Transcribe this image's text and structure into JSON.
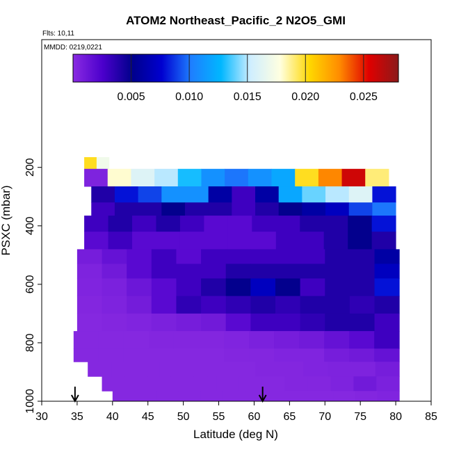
{
  "title": "ATOM2 Northeast_Pacific_2 N2O5_GMI",
  "flights_label": "Flts: 10,11",
  "mmdd_label": "MMDD: 0219,0221",
  "chart_data": {
    "type": "heatmap",
    "xlabel": "Latitude (deg N)",
    "ylabel": "PSXC (mbar)",
    "xlim": [
      30,
      85
    ],
    "ylim": [
      1000,
      0
    ],
    "x_ticks": [
      "30",
      "35",
      "40",
      "45",
      "50",
      "55",
      "60",
      "65",
      "70",
      "75",
      "80",
      "85"
    ],
    "y_ticks": [
      "200",
      "400",
      "600",
      "800",
      "1000"
    ],
    "colorbar": {
      "ticks": [
        "0.005",
        "0.010",
        "0.015",
        "0.020",
        "0.025"
      ],
      "min": 0.0,
      "max": 0.028,
      "colors": [
        "#8a2be2",
        "#4b00cc",
        "#00008b",
        "#0000d0",
        "#1e7fff",
        "#00b7ff",
        "#cfeeff",
        "#ffffe0",
        "#ffd700",
        "#ff8c00",
        "#e00000",
        "#8b1a1a"
      ]
    },
    "arrows_at_latitude": [
      34.7,
      61.2
    ],
    "rows": [
      {
        "p_top": 165,
        "p_bot": 205,
        "lat_start": 36,
        "lat_end": 39.5,
        "values": [
          0.02,
          0.017
        ]
      },
      {
        "p_top": 205,
        "p_bot": 265,
        "lat_start": 36,
        "lat_end": 79,
        "values": [
          0.0005,
          0.018,
          0.016,
          0.015,
          0.013,
          0.011,
          0.01,
          0.011,
          0.012,
          0.02,
          0.023,
          0.026,
          0.019
        ]
      },
      {
        "p_top": 265,
        "p_bot": 320,
        "lat_start": 37,
        "lat_end": 80,
        "values": [
          0.004,
          0.008,
          0.009,
          0.011,
          0.011,
          0.006,
          0.003,
          0.006,
          0.012,
          0.014,
          0.015,
          0.016,
          0.008
        ]
      },
      {
        "p_top": 320,
        "p_bot": 365,
        "lat_start": 37,
        "lat_end": 80,
        "values": [
          0.003,
          0.004,
          0.004,
          0.005,
          0.004,
          0.004,
          0.003,
          0.004,
          0.005,
          0.006,
          0.007,
          0.009,
          0.01
        ]
      },
      {
        "p_top": 365,
        "p_bot": 420,
        "lat_start": 36,
        "lat_end": 80,
        "values": [
          0.003,
          0.004,
          0.003,
          0.004,
          0.003,
          0.002,
          0.002,
          0.003,
          0.003,
          0.004,
          0.004,
          0.005,
          0.008
        ]
      },
      {
        "p_top": 420,
        "p_bot": 480,
        "lat_start": 36,
        "lat_end": 80,
        "values": [
          0.002,
          0.003,
          0.002,
          0.002,
          0.002,
          0.002,
          0.002,
          0.002,
          0.003,
          0.003,
          0.004,
          0.005,
          0.004
        ]
      },
      {
        "p_top": 480,
        "p_bot": 530,
        "lat_start": 35,
        "lat_end": 80.5,
        "values": [
          0.0008,
          0.0015,
          0.002,
          0.003,
          0.002,
          0.003,
          0.003,
          0.003,
          0.003,
          0.003,
          0.004,
          0.004,
          0.006
        ]
      },
      {
        "p_top": 530,
        "p_bot": 580,
        "lat_start": 35,
        "lat_end": 80.5,
        "values": [
          0.0005,
          0.001,
          0.002,
          0.003,
          0.003,
          0.003,
          0.004,
          0.004,
          0.004,
          0.004,
          0.004,
          0.004,
          0.007
        ]
      },
      {
        "p_top": 580,
        "p_bot": 640,
        "lat_start": 35,
        "lat_end": 80.5,
        "values": [
          0.0004,
          0.0006,
          0.0012,
          0.002,
          0.003,
          0.004,
          0.005,
          0.007,
          0.005,
          0.003,
          0.004,
          0.004,
          0.008
        ]
      },
      {
        "p_top": 640,
        "p_bot": 700,
        "lat_start": 35,
        "lat_end": 80.5,
        "values": [
          0.0003,
          0.0005,
          0.0009,
          0.002,
          0.0035,
          0.003,
          0.0035,
          0.004,
          0.0035,
          0.004,
          0.004,
          0.0035,
          0.004
        ]
      },
      {
        "p_top": 700,
        "p_bot": 760,
        "lat_start": 35,
        "lat_end": 80.5,
        "values": [
          0.0002,
          0.0003,
          0.0004,
          0.0006,
          0.0008,
          0.001,
          0.002,
          0.003,
          0.003,
          0.0035,
          0.004,
          0.004,
          0.003
        ]
      },
      {
        "p_top": 760,
        "p_bot": 820,
        "lat_start": 34.5,
        "lat_end": 80.5,
        "values": [
          0.0002,
          0.0002,
          0.0002,
          0.0003,
          0.0003,
          0.0003,
          0.0004,
          0.0006,
          0.0008,
          0.001,
          0.0015,
          0.002,
          0.003
        ]
      },
      {
        "p_top": 820,
        "p_bot": 865,
        "lat_start": 34.5,
        "lat_end": 80.5,
        "values": [
          0.0002,
          0.0002,
          0.0002,
          0.0002,
          0.0002,
          0.0002,
          0.0003,
          0.0003,
          0.0004,
          0.0004,
          0.0008,
          0.001,
          0.0015
        ]
      },
      {
        "p_top": 865,
        "p_bot": 915,
        "lat_start": 36.5,
        "lat_end": 80.5,
        "values": [
          0.0002,
          0.0002,
          0.0002,
          0.0002,
          0.0002,
          0.0002,
          0.0002,
          0.0003,
          0.0003,
          0.0004,
          0.0005,
          0.0005,
          0.0008
        ]
      },
      {
        "p_top": 915,
        "p_bot": 965,
        "lat_start": 38.5,
        "lat_end": 80.5,
        "values": [
          0.0002,
          0.0002,
          0.0002,
          0.0002,
          0.0002,
          0.0002,
          0.0002,
          0.0002,
          0.0003,
          0.0003,
          0.0005,
          0.001,
          0.0006
        ]
      },
      {
        "p_top": 965,
        "p_bot": 1000,
        "lat_start": 40,
        "lat_end": 80.5,
        "values": [
          0.0002,
          0.0002,
          0.0002,
          0.0002,
          0.0002,
          0.0002,
          0.0002,
          0.0002,
          0.0002,
          0.0002,
          0.0002,
          0.0003,
          0.0004
        ]
      }
    ]
  }
}
